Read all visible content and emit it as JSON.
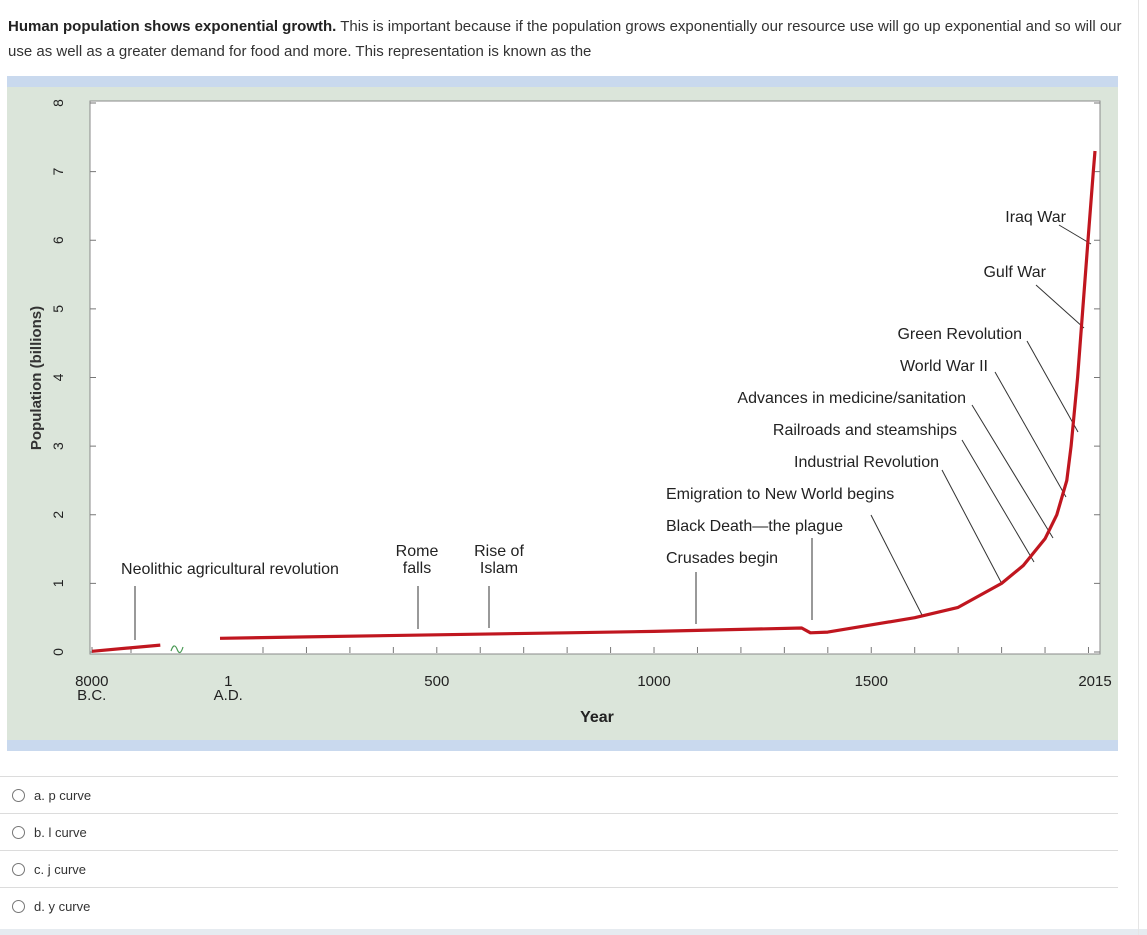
{
  "question": {
    "bold_text": "Human population shows exponential growth.",
    "body_text": " This is important because if the population grows exponentially our resource use will go up exponential and so will our use as well as a greater demand for food and more.  This representation is known as the"
  },
  "chart_data": {
    "type": "line",
    "xlabel": "Year",
    "ylabel": "Population (billions)",
    "ylim": [
      0,
      8
    ],
    "y_ticks": [
      "0",
      "1",
      "2",
      "3",
      "4",
      "5",
      "6",
      "7",
      "8"
    ],
    "x_tick_labels": [
      {
        "id": "bc",
        "lines": [
          "8000",
          "B.C."
        ]
      },
      {
        "id": "ad",
        "lines": [
          "1",
          "A.D."
        ]
      },
      {
        "id": "y500",
        "lines": [
          "500"
        ]
      },
      {
        "id": "y1000",
        "lines": [
          "1000"
        ]
      },
      {
        "id": "y1500",
        "lines": [
          "1500"
        ]
      },
      {
        "id": "y2015",
        "lines": [
          "2015"
        ]
      }
    ],
    "series": [
      {
        "name": "",
        "color": "#c0161f",
        "points": [
          {
            "year": -8000,
            "pop": 0.01
          },
          {
            "year": -1000,
            "pop": 0.1
          },
          {
            "year": 1,
            "pop": 0.2
          },
          {
            "year": 200,
            "pop": 0.22
          },
          {
            "year": 500,
            "pop": 0.25
          },
          {
            "year": 800,
            "pop": 0.28
          },
          {
            "year": 1000,
            "pop": 0.3
          },
          {
            "year": 1340,
            "pop": 0.35
          },
          {
            "year": 1360,
            "pop": 0.28
          },
          {
            "year": 1400,
            "pop": 0.29
          },
          {
            "year": 1600,
            "pop": 0.5
          },
          {
            "year": 1700,
            "pop": 0.65
          },
          {
            "year": 1800,
            "pop": 1.0
          },
          {
            "year": 1850,
            "pop": 1.26
          },
          {
            "year": 1900,
            "pop": 1.65
          },
          {
            "year": 1927,
            "pop": 2.0
          },
          {
            "year": 1950,
            "pop": 2.5
          },
          {
            "year": 1960,
            "pop": 3.0
          },
          {
            "year": 1975,
            "pop": 4.0
          },
          {
            "year": 1987,
            "pop": 5.0
          },
          {
            "year": 1999,
            "pop": 6.0
          },
          {
            "year": 2011,
            "pop": 7.0
          },
          {
            "year": 2015,
            "pop": 7.3
          }
        ]
      }
    ],
    "annotations": [
      {
        "id": "neolithic",
        "lines": [
          "Neolithic agricultural revolution"
        ],
        "year": -6500
      },
      {
        "id": "rome",
        "lines": [
          "Rome",
          "falls"
        ],
        "year": 410
      },
      {
        "id": "islam",
        "lines": [
          "Rise of",
          "Islam"
        ],
        "year": 610
      },
      {
        "id": "crusades",
        "lines": [
          "Crusades begin"
        ],
        "year": 1096
      },
      {
        "id": "black_death",
        "lines": [
          "Black Death—the plague"
        ],
        "year": 1347
      },
      {
        "id": "emigration",
        "lines": [
          "Emigration to New World  begins"
        ],
        "year": 1600
      },
      {
        "id": "industrial",
        "lines": [
          "Industrial Revolution"
        ],
        "year": 1780
      },
      {
        "id": "railroads",
        "lines": [
          "Railroads and steamships"
        ],
        "year": 1830
      },
      {
        "id": "medicine",
        "lines": [
          "Advances in medicine/sanitation"
        ],
        "year": 1880
      },
      {
        "id": "ww2",
        "lines": [
          "World War II"
        ],
        "year": 1942
      },
      {
        "id": "green",
        "lines": [
          "Green Revolution"
        ],
        "year": 1965
      },
      {
        "id": "gulf",
        "lines": [
          "Gulf War"
        ],
        "year": 1991
      },
      {
        "id": "iraq",
        "lines": [
          "Iraq War"
        ],
        "year": 2003
      }
    ],
    "grid": false,
    "legend": "none"
  },
  "options": [
    {
      "label": "a. p curve"
    },
    {
      "label": "b. l curve"
    },
    {
      "label": "c. j curve"
    },
    {
      "label": "d. y curve"
    }
  ]
}
